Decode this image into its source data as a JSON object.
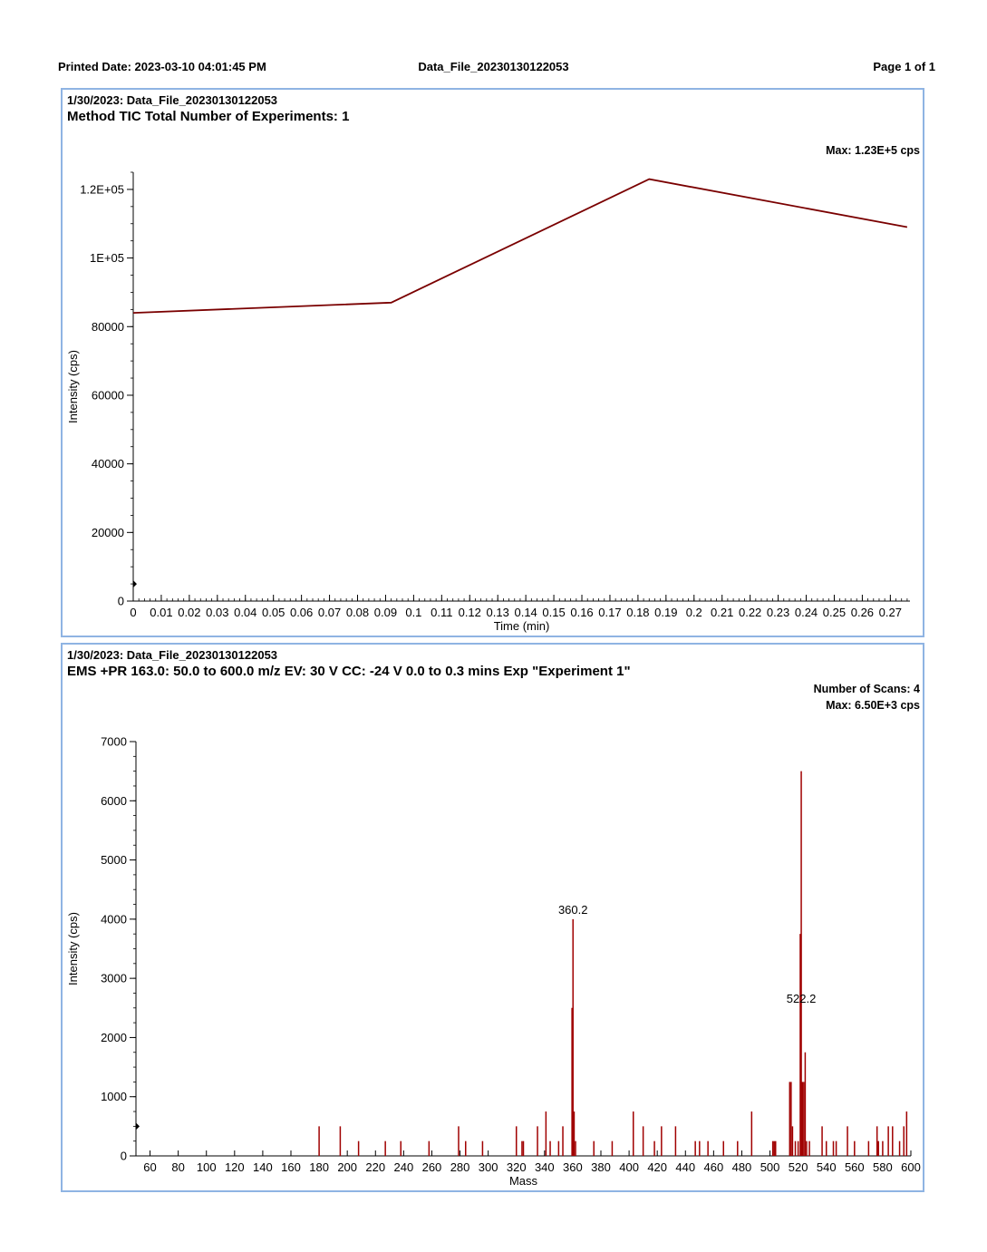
{
  "header": {
    "printed_date": "Printed Date: 2023-03-10 04:01:45 PM",
    "file_name": "Data_File_20230130122053",
    "page": "Page 1 of 1"
  },
  "panels": [
    {
      "title_line1": "1/30/2023: Data_File_20230130122053",
      "title_line2": "Method TIC Total Number of Experiments: 1",
      "info": [
        "Max: 1.23E+5 cps"
      ]
    },
    {
      "title_line1": "1/30/2023: Data_File_20230130122053",
      "title_line2": "EMS +PR 163.0: 50.0 to 600.0 m/z EV: 30 V CC: -24 V 0.0 to 0.3 mins Exp \"Experiment 1\"",
      "info": [
        "Number of Scans: 4",
        "Max: 6.50E+3 cps"
      ]
    }
  ],
  "chart_data": [
    {
      "type": "line",
      "xlabel": "Time (min)",
      "ylabel": "Intensity (cps)",
      "xlim": [
        0,
        0.277
      ],
      "ylim": [
        0,
        125000
      ],
      "x_ticks": [
        0,
        0.01,
        0.02,
        0.03,
        0.04,
        0.05,
        0.06,
        0.07,
        0.08,
        0.09,
        0.1,
        0.11,
        0.12,
        0.13,
        0.14,
        0.15,
        0.16,
        0.17,
        0.18,
        0.19,
        0.2,
        0.21,
        0.22,
        0.23,
        0.24,
        0.25,
        0.26,
        0.27
      ],
      "y_ticks": [
        0,
        20000,
        40000,
        60000,
        80000,
        100000,
        120000
      ],
      "y_tick_labels": [
        "0",
        "20000",
        "40000",
        "60000",
        "80000",
        "1E+05",
        "1.2E+05"
      ],
      "color": "#7a0000",
      "series": [
        {
          "x": [
            0,
            0.092,
            0.184,
            0.276
          ],
          "y": [
            84000,
            87000,
            123000,
            109000
          ]
        }
      ]
    },
    {
      "type": "bar",
      "xlabel": "Mass",
      "ylabel": "Intensity (cps)",
      "xlim": [
        50,
        600
      ],
      "ylim": [
        0,
        7000
      ],
      "x_ticks": [
        60,
        80,
        100,
        120,
        140,
        160,
        180,
        200,
        220,
        240,
        260,
        280,
        300,
        320,
        340,
        360,
        380,
        400,
        420,
        440,
        460,
        480,
        500,
        520,
        540,
        560,
        580,
        600
      ],
      "y_ticks": [
        0,
        1000,
        2000,
        3000,
        4000,
        5000,
        6000,
        7000
      ],
      "color": "#a00000",
      "annotations": [
        {
          "text": "360.2",
          "x": 360.2,
          "y": 4000
        },
        {
          "text": "522.2",
          "x": 522.2,
          "y": 2500
        }
      ],
      "peaks": [
        [
          180,
          500
        ],
        [
          195,
          500
        ],
        [
          208,
          250
        ],
        [
          227,
          250
        ],
        [
          238,
          250
        ],
        [
          258,
          250
        ],
        [
          279,
          500
        ],
        [
          284,
          250
        ],
        [
          296,
          250
        ],
        [
          320,
          500
        ],
        [
          324,
          250
        ],
        [
          325,
          250
        ],
        [
          335,
          500
        ],
        [
          341,
          750
        ],
        [
          344,
          250
        ],
        [
          350,
          250
        ],
        [
          353,
          500
        ],
        [
          359.5,
          2500
        ],
        [
          360.2,
          4000
        ],
        [
          361,
          750
        ],
        [
          362,
          250
        ],
        [
          375,
          250
        ],
        [
          388,
          250
        ],
        [
          403,
          750
        ],
        [
          410,
          500
        ],
        [
          418,
          250
        ],
        [
          423,
          500
        ],
        [
          433,
          500
        ],
        [
          447,
          250
        ],
        [
          450,
          250
        ],
        [
          456,
          250
        ],
        [
          467,
          250
        ],
        [
          477,
          250
        ],
        [
          487,
          750
        ],
        [
          502,
          250
        ],
        [
          503,
          250
        ],
        [
          504,
          250
        ],
        [
          514,
          1250
        ],
        [
          515,
          1250
        ],
        [
          516,
          500
        ],
        [
          518,
          250
        ],
        [
          520,
          250
        ],
        [
          521.5,
          3750
        ],
        [
          522.2,
          6500
        ],
        [
          523,
          1250
        ],
        [
          524,
          1250
        ],
        [
          525,
          1750
        ],
        [
          526,
          250
        ],
        [
          528,
          250
        ],
        [
          537,
          500
        ],
        [
          540,
          250
        ],
        [
          545,
          250
        ],
        [
          547,
          250
        ],
        [
          555,
          500
        ],
        [
          560,
          250
        ],
        [
          570,
          250
        ],
        [
          576,
          500
        ],
        [
          577,
          250
        ],
        [
          580,
          250
        ],
        [
          584,
          500
        ],
        [
          587,
          500
        ],
        [
          592,
          250
        ],
        [
          595,
          500
        ],
        [
          597,
          750
        ]
      ]
    }
  ]
}
